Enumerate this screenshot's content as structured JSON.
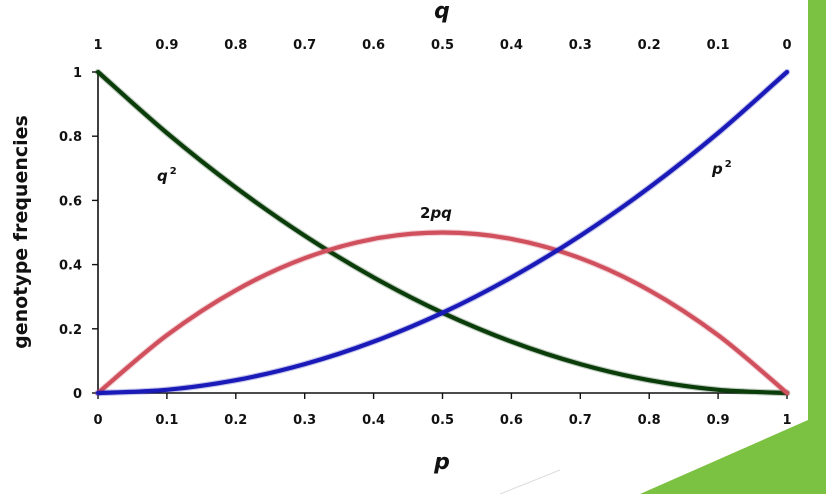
{
  "chart_data": {
    "type": "line",
    "title": "",
    "xlabel": "p",
    "x2label": "q",
    "ylabel": "genotype frequencies",
    "xlim": [
      0,
      1
    ],
    "ylim": [
      0,
      1
    ],
    "x_ticks": [
      "0",
      "0.1",
      "0.2",
      "0.3",
      "0.4",
      "0.5",
      "0.6",
      "0.7",
      "0.8",
      "0.9",
      "1"
    ],
    "x2_ticks": [
      "1",
      "0.9",
      "0.8",
      "0.7",
      "0.6",
      "0.5",
      "0.4",
      "0.3",
      "0.2",
      "0.1",
      "0"
    ],
    "y_ticks": [
      "0",
      "0.2",
      "0.4",
      "0.6",
      "0.8",
      "1"
    ],
    "grid": false,
    "x": [
      0,
      0.1,
      0.2,
      0.3,
      0.4,
      0.5,
      0.6,
      0.7,
      0.8,
      0.9,
      1
    ],
    "series": [
      {
        "name": "q²",
        "label_base": "q",
        "label_sup": "2",
        "color": "#0b3d0b",
        "values": [
          1,
          0.81,
          0.64,
          0.49,
          0.36,
          0.25,
          0.16,
          0.09,
          0.04,
          0.01,
          0
        ]
      },
      {
        "name": "2pq",
        "label_base": "2pq",
        "label_sup": "",
        "color": "#d0505e",
        "values": [
          0,
          0.18,
          0.32,
          0.42,
          0.48,
          0.5,
          0.48,
          0.42,
          0.32,
          0.18,
          0
        ]
      },
      {
        "name": "p²",
        "label_base": "p",
        "label_sup": "2",
        "color": "#1a1ab8",
        "values": [
          0,
          0.01,
          0.04,
          0.09,
          0.16,
          0.25,
          0.36,
          0.49,
          0.64,
          0.81,
          1
        ]
      }
    ]
  },
  "decor": {
    "accent_bar_color": "#7cc242"
  }
}
